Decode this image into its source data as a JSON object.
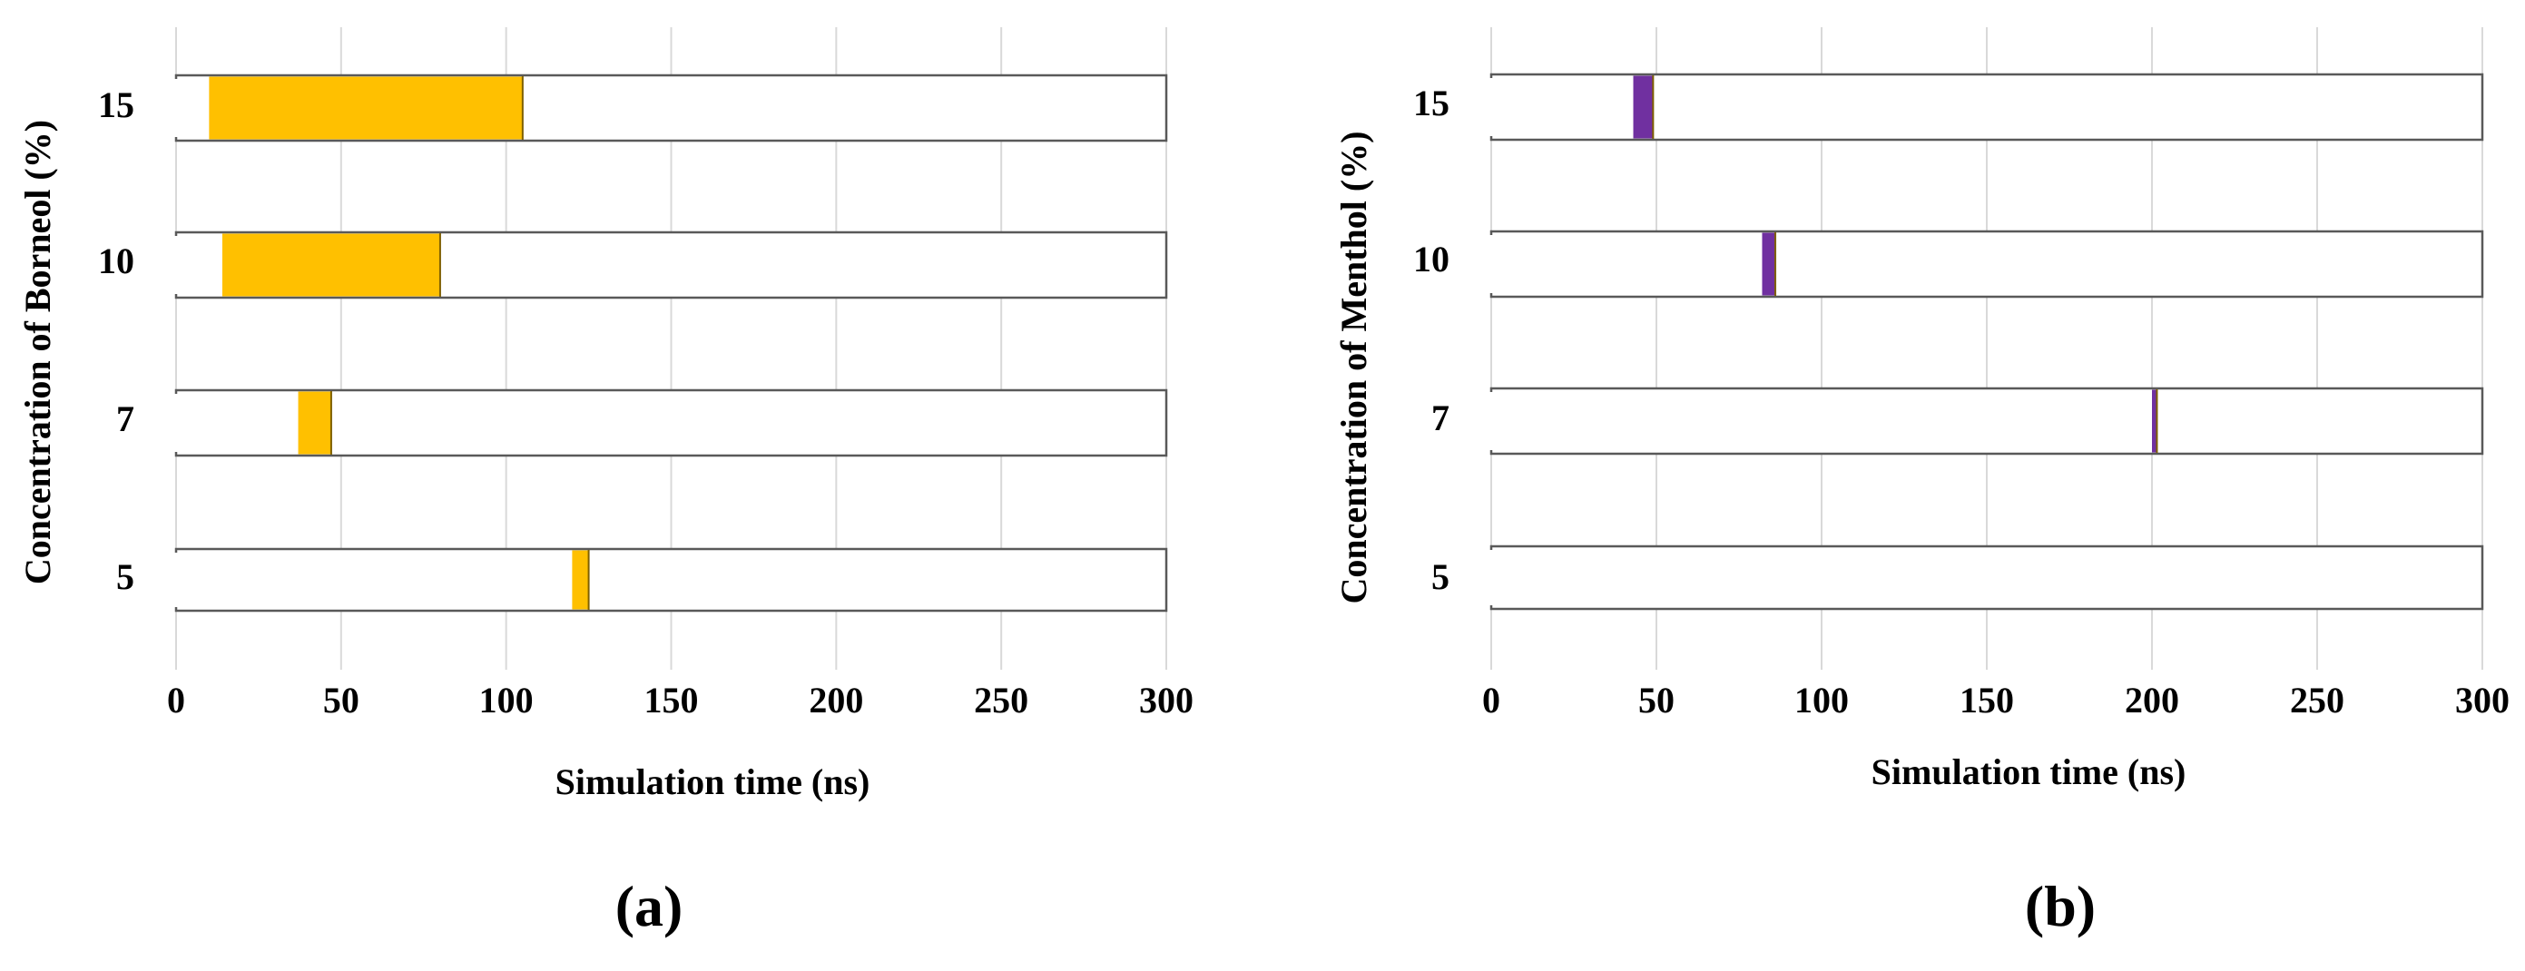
{
  "chart_data": [
    {
      "type": "bar",
      "subtype": "floating-range-bar",
      "panel_label": "(a)",
      "xlabel": "Simulation time (ns)",
      "ylabel": "Concentration  of Borneol (%)",
      "xlim": [
        0,
        300
      ],
      "xticks": [
        "0",
        "50",
        "100",
        "150",
        "200",
        "250",
        "300"
      ],
      "categories": [
        "15",
        "10",
        "7",
        "5"
      ],
      "track_range": [
        0,
        300
      ],
      "ranges": [
        {
          "category": "15",
          "start": 10,
          "end": 105
        },
        {
          "category": "10",
          "start": 14,
          "end": 80
        },
        {
          "category": "7",
          "start": 37,
          "end": 47
        },
        {
          "category": "5",
          "start": 120,
          "end": 125
        }
      ],
      "bar_color": "#FFC000",
      "grid": true
    },
    {
      "type": "bar",
      "subtype": "floating-range-bar",
      "panel_label": "(b)",
      "xlabel": "Simulation time (ns)",
      "ylabel": "Concentration  of Menthol (%)",
      "xlim": [
        0,
        300
      ],
      "xticks": [
        "0",
        "50",
        "100",
        "150",
        "200",
        "250",
        "300"
      ],
      "categories": [
        "15",
        "10",
        "7",
        "5"
      ],
      "track_range": [
        0,
        300
      ],
      "ranges": [
        {
          "category": "15",
          "start": 43,
          "end": 49
        },
        {
          "category": "10",
          "start": 82,
          "end": 86
        },
        {
          "category": "7",
          "start": 200,
          "end": 201.5
        },
        {
          "category": "5",
          "start": null,
          "end": null
        }
      ],
      "bar_color": "#7030A0",
      "grid": true
    }
  ]
}
